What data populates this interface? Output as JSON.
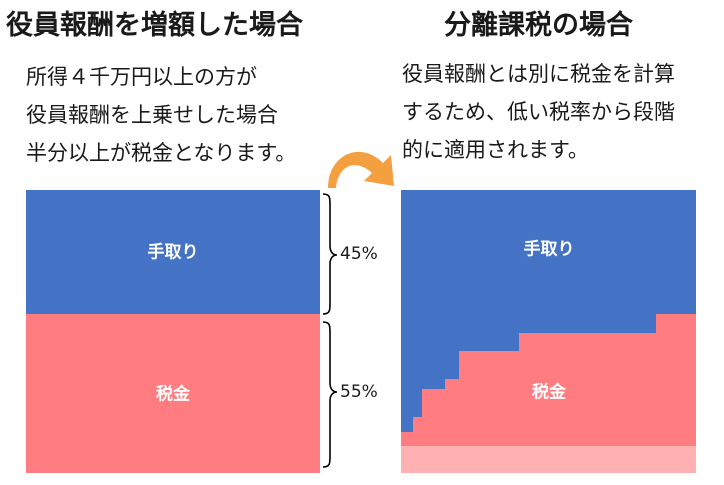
{
  "left": {
    "title": "役員報酬を増額した場合",
    "description": [
      "所得４千万円以上の方が",
      "役員報酬を上乗せした場合",
      "半分以上が税金となります。"
    ],
    "segments": [
      {
        "label": "手取り",
        "percent_label": "45%",
        "share": 0.45,
        "color": "#4472c4"
      },
      {
        "label": "税金",
        "percent_label": "55%",
        "share": 0.55,
        "color": "#ff7c80"
      }
    ]
  },
  "right": {
    "title": "分離課税の場合",
    "description": [
      "役員報酬とは別に税金を計算",
      "するため、低い税率から段階",
      "的に適用されます。"
    ],
    "segments": [
      {
        "label": "手取り",
        "color": "#4472c4"
      },
      {
        "label": "税金",
        "color": "#ff7c80"
      }
    ],
    "base_band_color": "#ffb0b3"
  },
  "arrow_color": "#f4a040"
}
